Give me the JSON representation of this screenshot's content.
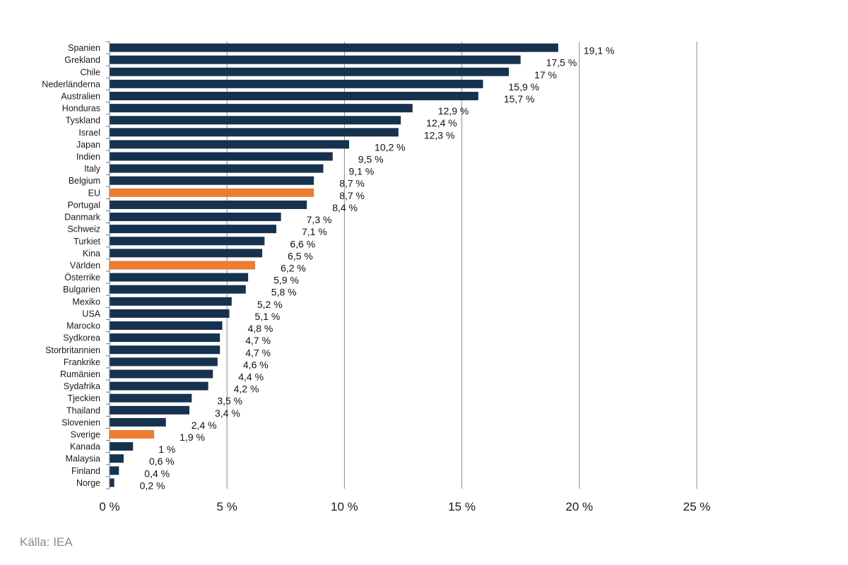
{
  "colors": {
    "bar": "#17324f",
    "highlight": "#ed7d31",
    "grid": "#8c8c8c",
    "axis": "#7a7a7a"
  },
  "chart_data": {
    "type": "bar",
    "orientation": "horizontal",
    "categories": [
      "Spanien",
      "Grekland",
      "Chile",
      "Nederländerna",
      "Australien",
      "Honduras",
      "Tyskland",
      "Israel",
      "Japan",
      "Indien",
      "Italy",
      "Belgium",
      "EU",
      "Portugal",
      "Danmark",
      "Schweiz",
      "Turkiet",
      "Kina",
      "Världen",
      "Österrike",
      "Bulgarien",
      "Mexiko",
      "USA",
      "Marocko",
      "Sydkorea",
      "Storbritannien",
      "Frankrike",
      "Rumänien",
      "Sydafrika",
      "Tjeckien",
      "Thailand",
      "Slovenien",
      "Sverige",
      "Kanada",
      "Malaysia",
      "Finland",
      "Norge"
    ],
    "values": [
      19.1,
      17.5,
      17,
      15.9,
      15.7,
      12.9,
      12.4,
      12.3,
      10.2,
      9.5,
      9.1,
      8.7,
      8.7,
      8.4,
      7.3,
      7.1,
      6.6,
      6.5,
      6.2,
      5.9,
      5.8,
      5.2,
      5.1,
      4.8,
      4.7,
      4.7,
      4.6,
      4.4,
      4.2,
      3.5,
      3.4,
      2.4,
      1.9,
      1,
      0.6,
      0.4,
      0.2
    ],
    "value_labels": [
      "19,1 %",
      "17,5 %",
      "17 %",
      "15,9 %",
      "15,7 %",
      "12,9 %",
      "12,4 %",
      "12,3 %",
      "10,2 %",
      "9,5 %",
      "9,1 %",
      "8,7 %",
      "8,7 %",
      "8,4 %",
      "7,3 %",
      "7,1 %",
      "6,6 %",
      "6,5 %",
      "6,2 %",
      "5,9 %",
      "5,8 %",
      "5,2 %",
      "5,1 %",
      "4,8 %",
      "4,7 %",
      "4,7 %",
      "4,6 %",
      "4,4 %",
      "4,2 %",
      "3,5 %",
      "3,4 %",
      "2,4 %",
      "1,9 %",
      "1 %",
      "0,6 %",
      "0,4 %",
      "0,2 %"
    ],
    "highlighted": [
      "EU",
      "Världen",
      "Sverige"
    ],
    "xlim": [
      0,
      25
    ],
    "xticks": [
      0,
      5,
      10,
      15,
      20,
      25
    ],
    "xtick_labels": [
      "0 %",
      "5 %",
      "10 %",
      "15 %",
      "20 %",
      "25 %"
    ],
    "title": "",
    "xlabel": "",
    "ylabel": "",
    "grid": "vertical",
    "legend": "none"
  },
  "source": "Källa: IEA"
}
